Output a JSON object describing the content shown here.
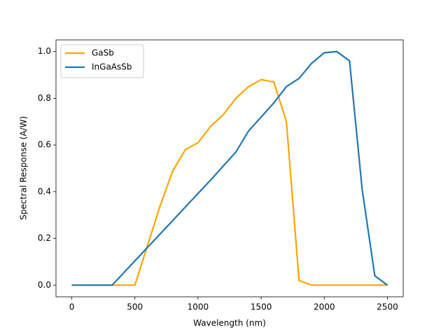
{
  "chart_data": {
    "type": "line",
    "xlabel": "Wavelength (nm)",
    "ylabel": "Spectral Response (A/W)",
    "series": [
      {
        "name": "GaSb",
        "color": "#ffa500",
        "x": [
          0,
          500,
          600,
          700,
          800,
          900,
          1000,
          1100,
          1200,
          1300,
          1400,
          1500,
          1600,
          1700,
          1800,
          1900,
          2500
        ],
        "values": [
          0,
          0,
          0.17,
          0.34,
          0.49,
          0.58,
          0.61,
          0.68,
          0.73,
          0.8,
          0.85,
          0.88,
          0.87,
          0.7,
          0.02,
          0,
          0
        ]
      },
      {
        "name": "InGaAsSb",
        "color": "#1f77b4",
        "x": [
          0,
          320,
          1100,
          1200,
          1300,
          1400,
          1500,
          1600,
          1700,
          1800,
          1900,
          2000,
          2100,
          2200,
          2300,
          2400,
          2500
        ],
        "values": [
          0,
          0,
          0.45,
          0.51,
          0.57,
          0.66,
          0.72,
          0.78,
          0.85,
          0.885,
          0.95,
          0.995,
          1.0,
          0.96,
          0.41,
          0.04,
          0
        ]
      }
    ],
    "xlim": [
      -125,
      2625
    ],
    "xticks": [
      0,
      500,
      1000,
      1500,
      2000,
      2500
    ],
    "ylim": [
      -0.05,
      1.05
    ],
    "yticks": [
      {
        "value": 0,
        "label": "0.0"
      },
      {
        "value": 0.2,
        "label": "0.2"
      },
      {
        "value": 0.4,
        "label": "0.4"
      },
      {
        "value": 0.6,
        "label": "0.6"
      },
      {
        "value": 0.8,
        "label": "0.8"
      },
      {
        "value": 1.0,
        "label": "1.0"
      }
    ],
    "legend": "upper left"
  }
}
